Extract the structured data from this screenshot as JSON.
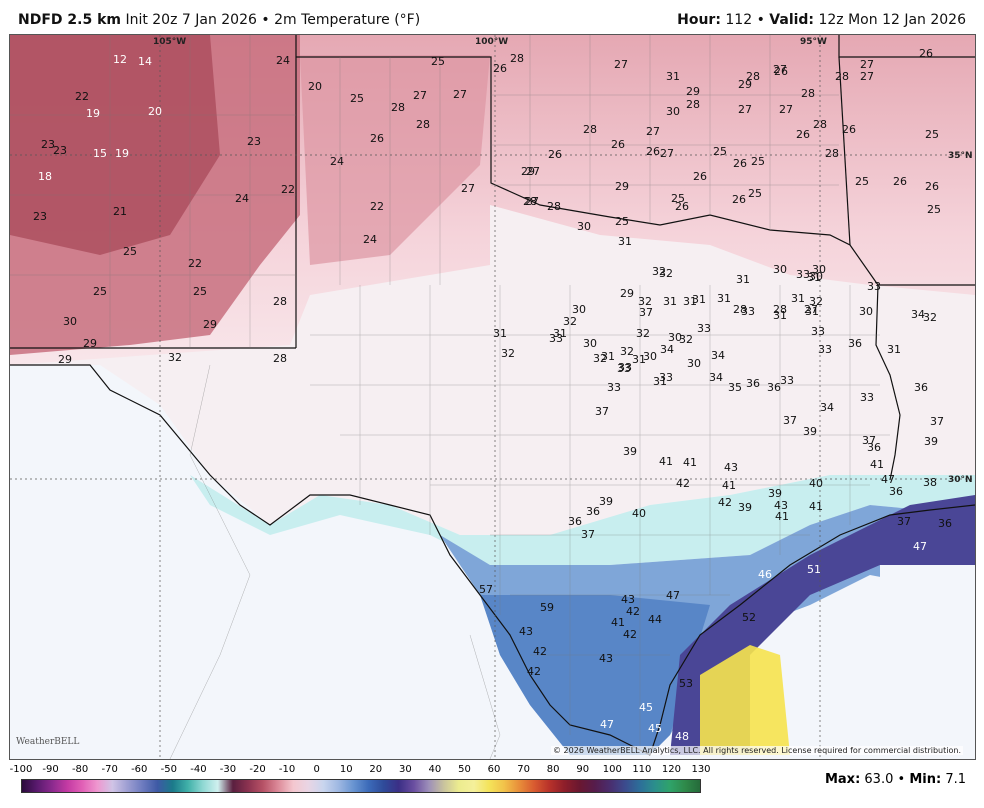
{
  "header": {
    "model": "NDFD 2.5 km",
    "init": "Init 20z 7 Jan 2026",
    "sep": "•",
    "field": "2m Temperature (°F)",
    "hour_label": "Hour:",
    "hour": "112",
    "valid_label": "Valid:",
    "valid": "12z Mon 12 Jan 2026"
  },
  "map": {
    "lon_labels": [
      "105°W",
      "100°W",
      "95°W"
    ],
    "lat_labels": [
      "35°N",
      "30°N"
    ],
    "copyright": "© 2026 WeatherBELL Analytics, LLC. All rights reserved. License required for commercial distribution.",
    "logo": "WeatherBELL",
    "values": [
      {
        "t": "12",
        "w": true
      },
      {
        "t": "14",
        "w": true
      },
      {
        "t": "22",
        "w": false
      },
      {
        "t": "19",
        "w": true
      },
      {
        "t": "20",
        "w": true
      },
      {
        "t": "23",
        "w": false
      },
      {
        "t": "23",
        "w": false
      },
      {
        "t": "15",
        "w": true
      },
      {
        "t": "19",
        "w": true
      },
      {
        "t": "18",
        "w": true
      },
      {
        "t": "21",
        "w": false
      },
      {
        "t": "23",
        "w": false
      },
      {
        "t": "25",
        "w": false
      },
      {
        "t": "22",
        "w": false
      },
      {
        "t": "25",
        "w": false
      },
      {
        "t": "25",
        "w": false
      },
      {
        "t": "28",
        "w": false
      },
      {
        "t": "30",
        "w": false
      },
      {
        "t": "29",
        "w": false
      },
      {
        "t": "29",
        "w": false
      },
      {
        "t": "24",
        "w": false
      },
      {
        "t": "23",
        "w": false
      },
      {
        "t": "24",
        "w": false
      },
      {
        "t": "22",
        "w": false
      },
      {
        "t": "29",
        "w": false
      },
      {
        "t": "28",
        "w": false
      },
      {
        "t": "32",
        "w": false
      },
      {
        "t": "20",
        "w": false
      },
      {
        "t": "25",
        "w": false
      },
      {
        "t": "28",
        "w": false
      },
      {
        "t": "28",
        "w": false
      },
      {
        "t": "27",
        "w": false
      },
      {
        "t": "27",
        "w": false
      },
      {
        "t": "26",
        "w": false
      },
      {
        "t": "24",
        "w": false
      },
      {
        "t": "22",
        "w": false
      },
      {
        "t": "24",
        "w": false
      },
      {
        "t": "25",
        "w": false
      },
      {
        "t": "26",
        "w": false
      },
      {
        "t": "28",
        "w": false
      },
      {
        "t": "27",
        "w": false
      },
      {
        "t": "27",
        "w": false
      },
      {
        "t": "26",
        "w": false
      },
      {
        "t": "28",
        "w": false
      },
      {
        "t": "27",
        "w": false
      },
      {
        "t": "31",
        "w": false
      },
      {
        "t": "29",
        "w": false
      },
      {
        "t": "30",
        "w": false
      },
      {
        "t": "27",
        "w": false
      },
      {
        "t": "28",
        "w": false
      },
      {
        "t": "29",
        "w": false
      },
      {
        "t": "28",
        "w": false
      },
      {
        "t": "27",
        "w": false
      },
      {
        "t": "27",
        "w": false
      },
      {
        "t": "26",
        "w": false
      },
      {
        "t": "27",
        "w": false
      },
      {
        "t": "28",
        "w": false
      },
      {
        "t": "26",
        "w": false
      },
      {
        "t": "28",
        "w": false
      },
      {
        "t": "28",
        "w": false
      },
      {
        "t": "26",
        "w": false
      },
      {
        "t": "27",
        "w": false
      },
      {
        "t": "27",
        "w": false
      },
      {
        "t": "28",
        "w": false
      },
      {
        "t": "26",
        "w": false
      },
      {
        "t": "25",
        "w": false
      },
      {
        "t": "26",
        "w": false
      },
      {
        "t": "25",
        "w": false
      },
      {
        "t": "26",
        "w": false
      },
      {
        "t": "25",
        "w": false
      },
      {
        "t": "25",
        "w": false
      },
      {
        "t": "26",
        "w": false
      },
      {
        "t": "25",
        "w": false
      },
      {
        "t": "26",
        "w": false
      },
      {
        "t": "26",
        "w": false
      },
      {
        "t": "25",
        "w": false
      },
      {
        "t": "26",
        "w": false
      },
      {
        "t": "25",
        "w": false
      },
      {
        "t": "26",
        "w": false
      },
      {
        "t": "27",
        "w": false
      },
      {
        "t": "25",
        "w": false
      },
      {
        "t": "29",
        "w": false
      },
      {
        "t": "28",
        "w": false
      },
      {
        "t": "27",
        "w": false
      },
      {
        "t": "29",
        "w": false
      },
      {
        "t": "26",
        "w": false
      },
      {
        "t": "28",
        "w": false
      },
      {
        "t": "30",
        "w": false
      },
      {
        "t": "30",
        "w": false
      },
      {
        "t": "31",
        "w": false
      },
      {
        "t": "32",
        "w": false
      },
      {
        "t": "30",
        "w": false
      },
      {
        "t": "30",
        "w": false
      },
      {
        "t": "30",
        "w": false
      },
      {
        "t": "33",
        "w": false
      },
      {
        "t": "32",
        "w": false
      },
      {
        "t": "31",
        "w": false
      },
      {
        "t": "29",
        "w": false
      },
      {
        "t": "31",
        "w": false
      },
      {
        "t": "31",
        "w": false
      },
      {
        "t": "28",
        "w": false
      },
      {
        "t": "31",
        "w": false
      },
      {
        "t": "28",
        "w": false
      },
      {
        "t": "27",
        "w": false
      },
      {
        "t": "32",
        "w": false
      },
      {
        "t": "33",
        "w": false
      },
      {
        "t": "31",
        "w": false
      },
      {
        "t": "31",
        "w": false
      },
      {
        "t": "33",
        "w": false
      },
      {
        "t": "34",
        "w": false
      },
      {
        "t": "30",
        "w": false
      },
      {
        "t": "31",
        "w": false
      },
      {
        "t": "30",
        "w": false
      },
      {
        "t": "31",
        "w": false
      },
      {
        "t": "33",
        "w": false
      },
      {
        "t": "37",
        "w": false
      },
      {
        "t": "32",
        "w": false
      },
      {
        "t": "31",
        "w": false
      },
      {
        "t": "31",
        "w": false
      },
      {
        "t": "33",
        "w": false
      },
      {
        "t": "32",
        "w": false
      },
      {
        "t": "32",
        "w": false
      },
      {
        "t": "34",
        "w": false
      },
      {
        "t": "33",
        "w": false
      },
      {
        "t": "31",
        "w": false
      },
      {
        "t": "32",
        "w": false
      },
      {
        "t": "33",
        "w": false
      },
      {
        "t": "34",
        "w": false
      },
      {
        "t": "30",
        "w": false
      },
      {
        "t": "31",
        "w": false
      },
      {
        "t": "36",
        "w": false
      },
      {
        "t": "31",
        "w": false
      },
      {
        "t": "32",
        "w": false
      },
      {
        "t": "33",
        "w": false
      },
      {
        "t": "30",
        "w": false
      },
      {
        "t": "32",
        "w": false
      },
      {
        "t": "32",
        "w": false
      },
      {
        "t": "31",
        "w": false
      },
      {
        "t": "32",
        "w": false
      },
      {
        "t": "30",
        "w": false
      },
      {
        "t": "34",
        "w": false
      },
      {
        "t": "35",
        "w": false
      },
      {
        "t": "36",
        "w": false
      },
      {
        "t": "36",
        "w": false
      },
      {
        "t": "33",
        "w": false
      },
      {
        "t": "33",
        "w": false
      },
      {
        "t": "31",
        "w": false
      },
      {
        "t": "33",
        "w": false
      },
      {
        "t": "33",
        "w": false
      },
      {
        "t": "33",
        "w": false
      },
      {
        "t": "36",
        "w": false
      },
      {
        "t": "37",
        "w": false
      },
      {
        "t": "34",
        "w": false
      },
      {
        "t": "39",
        "w": false
      },
      {
        "t": "37",
        "w": false
      },
      {
        "t": "37",
        "w": false
      },
      {
        "t": "39",
        "w": false
      },
      {
        "t": "36",
        "w": false
      },
      {
        "t": "37",
        "w": false
      },
      {
        "t": "39",
        "w": false
      },
      {
        "t": "41",
        "w": false
      },
      {
        "t": "41",
        "w": false
      },
      {
        "t": "43",
        "w": false
      },
      {
        "t": "42",
        "w": false
      },
      {
        "t": "41",
        "w": false
      },
      {
        "t": "40",
        "w": false
      },
      {
        "t": "36",
        "w": false
      },
      {
        "t": "39",
        "w": false
      },
      {
        "t": "36",
        "w": false
      },
      {
        "t": "37",
        "w": false
      },
      {
        "t": "39",
        "w": false
      },
      {
        "t": "39",
        "w": false
      },
      {
        "t": "41",
        "w": false
      },
      {
        "t": "41",
        "w": false
      },
      {
        "t": "43",
        "w": false
      },
      {
        "t": "42",
        "w": false
      },
      {
        "t": "40",
        "w": false
      },
      {
        "t": "41",
        "w": false
      },
      {
        "t": "47",
        "w": false
      },
      {
        "t": "38",
        "w": false
      },
      {
        "t": "36",
        "w": false
      },
      {
        "t": "37",
        "w": false
      },
      {
        "t": "36",
        "w": false
      },
      {
        "t": "47",
        "w": true
      },
      {
        "t": "46",
        "w": true
      },
      {
        "t": "51",
        "w": true
      },
      {
        "t": "52",
        "w": false
      },
      {
        "t": "53",
        "w": false
      },
      {
        "t": "57",
        "w": false
      },
      {
        "t": "59",
        "w": false
      },
      {
        "t": "41",
        "w": false
      },
      {
        "t": "42",
        "w": false
      },
      {
        "t": "42",
        "w": false
      },
      {
        "t": "42",
        "w": false
      },
      {
        "t": "43",
        "w": false
      },
      {
        "t": "43",
        "w": false
      },
      {
        "t": "43",
        "w": false
      },
      {
        "t": "42",
        "w": false
      },
      {
        "t": "45",
        "w": true
      },
      {
        "t": "47",
        "w": true
      },
      {
        "t": "45",
        "w": true
      },
      {
        "t": "48",
        "w": true
      },
      {
        "t": "47",
        "w": false
      },
      {
        "t": "44",
        "w": false
      }
    ]
  },
  "legend": {
    "ticks": [
      "-100",
      "-90",
      "-80",
      "-70",
      "-60",
      "-50",
      "-40",
      "-30",
      "-20",
      "-10",
      "0",
      "10",
      "20",
      "30",
      "40",
      "50",
      "60",
      "70",
      "80",
      "90",
      "100",
      "110",
      "120",
      "130"
    ],
    "colors": [
      "#2b0a3d",
      "#5a1a6e",
      "#8b2a8e",
      "#c33aa3",
      "#e160b6",
      "#ef97cf",
      "#d0c4e6",
      "#9d9ed2",
      "#6d7bbf",
      "#3e5aa5",
      "#1b7a8a",
      "#40b0a8",
      "#8fd8d3",
      "#d0f0ef",
      "#5a1f3f",
      "#8b3250",
      "#b75266",
      "#dc8a99",
      "#f4c7cf",
      "#e9d5e4",
      "#c9d5ee",
      "#9fb8e2",
      "#6894d1",
      "#3c6bb9",
      "#2f4b9a",
      "#3b2f86",
      "#6a4ea0",
      "#9d8fb9",
      "#c9c39d",
      "#ecec8f",
      "#f5f09b",
      "#f4e35a",
      "#f2c24a",
      "#e88e3a",
      "#d85a30",
      "#b8322a",
      "#8e1e2a",
      "#6a1730",
      "#561c4b",
      "#4a2d6d",
      "#3c4a8d",
      "#2d6e99",
      "#2b8f8c",
      "#2fa36a",
      "#2f8a4a",
      "#256b3a"
    ],
    "max_label": "Max:",
    "max": "63.0",
    "min_label": "Min:",
    "min": "7.1"
  }
}
